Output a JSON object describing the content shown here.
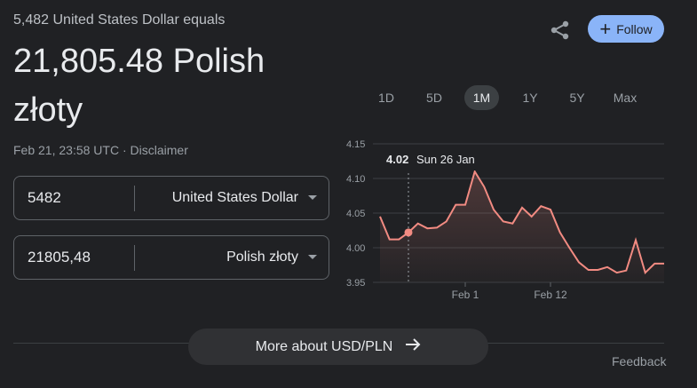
{
  "header": {
    "subtitle": "5,482 United States Dollar equals",
    "result_line1": "21,805.48 Polish",
    "result_line2": "złoty",
    "timestamp": "Feb 21, 23:58 UTC",
    "separator": " · ",
    "disclaimer": "Disclaimer",
    "follow_label": "Follow",
    "share_icon": "share-icon"
  },
  "converter": {
    "from": {
      "value": "5482",
      "currency": "United States Dollar"
    },
    "to": {
      "value": "21805,48",
      "currency": "Polish złoty"
    }
  },
  "range_tabs": [
    {
      "label": "1D",
      "active": false
    },
    {
      "label": "5D",
      "active": false
    },
    {
      "label": "1M",
      "active": true
    },
    {
      "label": "1Y",
      "active": false
    },
    {
      "label": "5Y",
      "active": false
    },
    {
      "label": "Max",
      "active": false
    }
  ],
  "tooltip": {
    "value": "4.02",
    "date": "Sun 26 Jan"
  },
  "chart_data": {
    "type": "line",
    "x_tick_labels": [
      "Feb 1",
      "Feb 12"
    ],
    "y_tick_labels": [
      "4.15",
      "4.10",
      "4.05",
      "4.00",
      "3.95"
    ],
    "ylim": [
      3.95,
      4.15
    ],
    "grid": true,
    "line_color": "#f28b82",
    "values": [
      4.045,
      4.012,
      4.012,
      4.022,
      4.035,
      4.028,
      4.029,
      4.038,
      4.062,
      4.062,
      4.11,
      4.088,
      4.055,
      4.038,
      4.035,
      4.058,
      4.045,
      4.06,
      4.055,
      4.022,
      4.0,
      3.979,
      3.968,
      3.968,
      3.972,
      3.964,
      3.967,
      4.011,
      3.964,
      3.977,
      3.977
    ],
    "highlight_index": 3
  },
  "footer": {
    "more_label": "More about USD/PLN",
    "arrow_icon": "arrow-right-icon",
    "feedback": "Feedback"
  }
}
